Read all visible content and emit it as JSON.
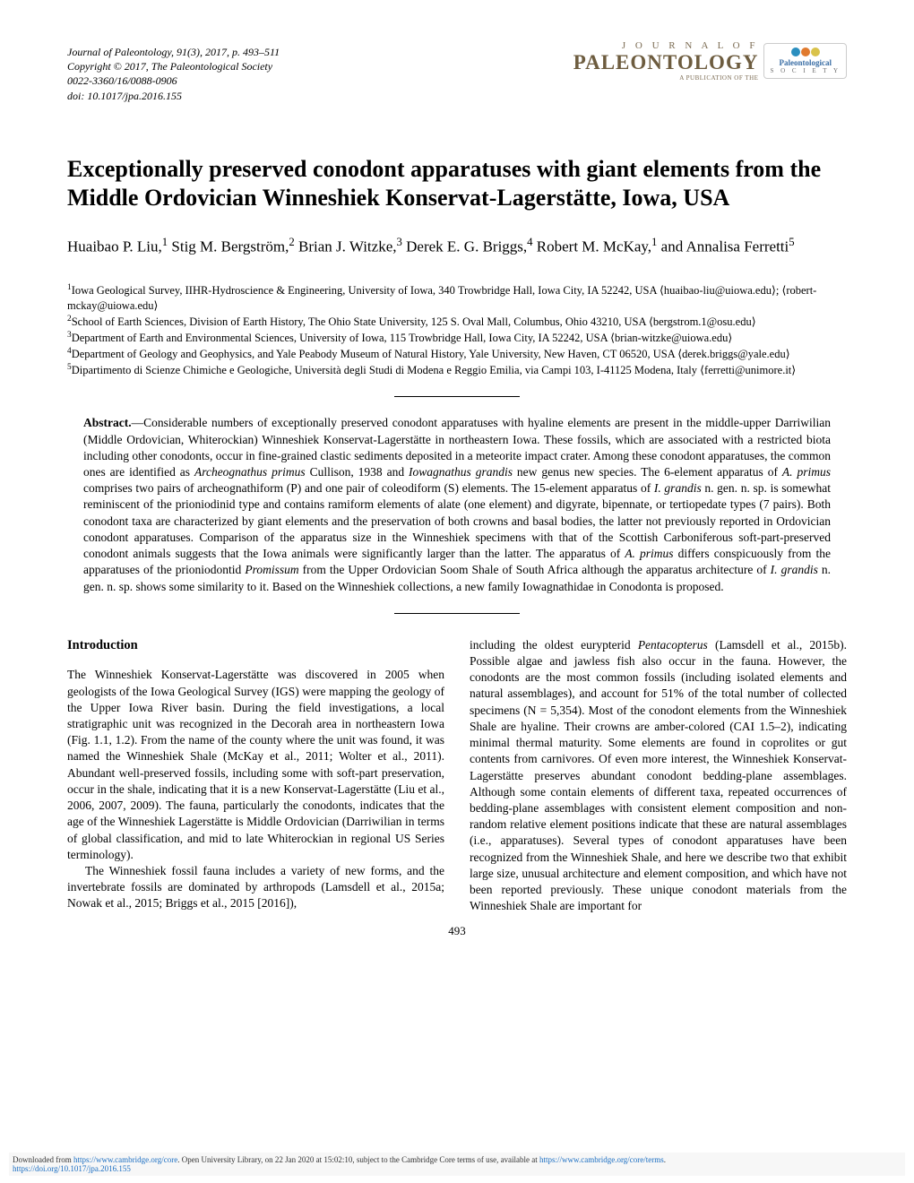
{
  "meta": {
    "citation": "Journal of Paleontology, 91(3), 2017, p. 493–511",
    "copyright": "Copyright © 2017, The Paleontological Society",
    "issn": "0022-3360/16/0088-0906",
    "doi": "doi: 10.1017/jpa.2016.155"
  },
  "logo": {
    "top": "J O U R N A L  O F",
    "main": "PALEONTOLOGY",
    "sub": "A PUBLICATION OF THE",
    "society_text": "Paleontological",
    "society_sub": "S O C I E T Y",
    "colors": [
      "#2b8fbf",
      "#e07a2e",
      "#d9c24a"
    ]
  },
  "title": "Exceptionally preserved conodont apparatuses with giant elements from the Middle Ordovician Winneshiek Konservat-Lagerstätte, Iowa, USA",
  "authors_html": "Huaibao P. Liu,<sup>1</sup> Stig M. Bergström,<sup>2</sup> Brian J. Witzke,<sup>3</sup> Derek E. G. Briggs,<sup>4</sup> Robert M. McKay,<sup>1</sup> and Annalisa Ferretti<sup>5</sup>",
  "affiliations": [
    "<sup>1</sup>Iowa Geological Survey, IIHR-Hydroscience & Engineering, University of Iowa, 340 Trowbridge Hall, Iowa City, IA 52242, USA ⟨huaibao-liu@uiowa.edu⟩; ⟨robert-mckay@uiowa.edu⟩",
    "<sup>2</sup>School of Earth Sciences, Division of Earth History, The Ohio State University, 125 S. Oval Mall, Columbus, Ohio 43210, USA ⟨bergstrom.1@osu.edu⟩",
    "<sup>3</sup>Department of Earth and Environmental Sciences, University of Iowa, 115 Trowbridge Hall, Iowa City, IA 52242, USA ⟨brian-witzke@uiowa.edu⟩",
    "<sup>4</sup>Department of Geology and Geophysics, and Yale Peabody Museum of Natural History, Yale University, New Haven, CT 06520, USA ⟨derek.briggs@yale.edu⟩",
    "<sup>5</sup>Dipartimento di Scienze Chimiche e Geologiche, Università degli Studi di Modena e Reggio Emilia, via Campi 103, I-41125 Modena, Italy ⟨ferretti@unimore.it⟩"
  ],
  "abstract": {
    "label": "Abstract.",
    "text": "—Considerable numbers of exceptionally preserved conodont apparatuses with hyaline elements are present in the middle-upper Darriwilian (Middle Ordovician, Whiterockian) Winneshiek Konservat-Lagerstätte in northeastern Iowa. These fossils, which are associated with a restricted biota including other conodonts, occur in fine-grained clastic sediments deposited in a meteorite impact crater. Among these conodont apparatuses, the common ones are identified as <em>Archeognathus primus</em> Cullison, 1938 and <em>Iowagnathus grandis</em> new genus new species. The 6-element apparatus of <em>A. primus</em> comprises two pairs of archeognathiform (P) and one pair of coleodiform (S) elements. The 15-element apparatus of <em>I. grandis</em> n. gen. n. sp. is somewhat reminiscent of the prioniodinid type and contains ramiform elements of alate (one element) and digyrate, bipennate, or tertiopedate types (7 pairs). Both conodont taxa are characterized by giant elements and the preservation of both crowns and basal bodies, the latter not previously reported in Ordovician conodont apparatuses. Comparison of the apparatus size in the Winneshiek specimens with that of the Scottish Carboniferous soft-part-preserved conodont animals suggests that the Iowa animals were significantly larger than the latter. The apparatus of <em>A. primus</em> differs conspicuously from the apparatuses of the prioniodontid <em>Promissum</em> from the Upper Ordovician Soom Shale of South Africa although the apparatus architecture of <em>I. grandis</em> n. gen. n. sp. shows some similarity to it. Based on the Winneshiek collections, a new family Iowagnathidae in Conodonta is proposed."
  },
  "section_heading": "Introduction",
  "col_left_p1": "The Winneshiek Konservat-Lagerstätte was discovered in 2005 when geologists of the Iowa Geological Survey (IGS) were mapping the geology of the Upper Iowa River basin. During the field investigations, a local stratigraphic unit was recognized in the Decorah area in northeastern Iowa (Fig. 1.1, 1.2). From the name of the county where the unit was found, it was named the Winneshiek Shale (McKay et al., 2011; Wolter et al., 2011). Abundant well-preserved fossils, including some with soft-part preservation, occur in the shale, indicating that it is a new Konservat-Lagerstätte (Liu et al., 2006, 2007, 2009). The fauna, particularly the conodonts, indicates that the age of the Winneshiek Lagerstätte is Middle Ordovician (Darriwilian in terms of global classification, and mid to late Whiterockian in regional US Series terminology).",
  "col_left_p2": "The Winneshiek fossil fauna includes a variety of new forms, and the invertebrate fossils are dominated by arthropods (Lamsdell et al., 2015a; Nowak et al., 2015; Briggs et al., 2015 [2016]),",
  "col_right_p1": "including the oldest eurypterid <em>Pentacopterus</em> (Lamsdell et al., 2015b). Possible algae and jawless fish also occur in the fauna. However, the conodonts are the most common fossils (including isolated elements and natural assemblages), and account for 51% of the total number of collected specimens (N = 5,354). Most of the conodont elements from the Winneshiek Shale are hyaline. Their crowns are amber-colored (CAI 1.5–2), indicating minimal thermal maturity. Some elements are found in coprolites or gut contents from carnivores. Of even more interest, the Winneshiek Konservat-Lagerstätte preserves abundant conodont bedding-plane assemblages. Although some contain elements of different taxa, repeated occurrences of bedding-plane assemblages with consistent element composition and non-random relative element positions indicate that these are natural assemblages (i.e., apparatuses). Several types of conodont apparatuses have been recognized from the Winneshiek Shale, and here we describe two that exhibit large size, unusual architecture and element composition, and which have not been reported previously. These unique conodont materials from the Winneshiek Shale are important for",
  "page_number": "493",
  "footer": {
    "text_pre": "Downloaded from ",
    "link1": "https://www.cambridge.org/core",
    "text_mid": ". Open University Library, on 22 Jan 2020 at 15:02:10, subject to the Cambridge Core terms of use, available at ",
    "link2": "https://www.cambridge.org/core/terms",
    "text_period": ".",
    "link3": "https://doi.org/10.1017/jpa.2016.155"
  }
}
